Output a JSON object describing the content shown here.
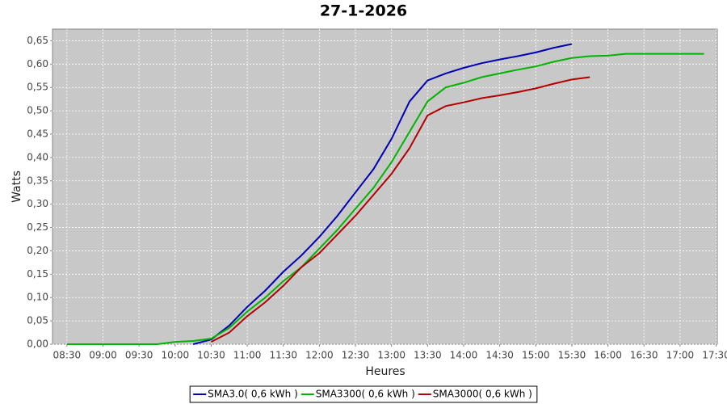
{
  "chart_data": {
    "type": "line",
    "title": "27-1-2026",
    "x_label": "Heures",
    "y_label": "Watts",
    "x": [
      "08:30",
      "08:45",
      "09:00",
      "09:15",
      "09:30",
      "09:45",
      "10:00",
      "10:15",
      "10:30",
      "10:45",
      "11:00",
      "11:15",
      "11:30",
      "11:45",
      "12:00",
      "12:15",
      "12:30",
      "12:45",
      "13:00",
      "13:15",
      "13:30",
      "13:45",
      "14:00",
      "14:15",
      "14:30",
      "14:45",
      "15:00",
      "15:15",
      "15:30",
      "15:45",
      "16:00",
      "16:15",
      "16:30",
      "16:45",
      "17:00",
      "17:15",
      "17:20"
    ],
    "series": [
      {
        "name": "SMA3.0( 0,6 kWh )",
        "color": "#0000b4",
        "values": [
          null,
          null,
          null,
          null,
          null,
          null,
          null,
          0,
          0.01,
          0.04,
          0.08,
          0.115,
          0.155,
          0.19,
          0.23,
          0.275,
          0.325,
          0.375,
          0.44,
          0.52,
          0.565,
          0.58,
          0.592,
          0.602,
          0.61,
          0.617,
          0.625,
          0.635,
          0.643,
          null,
          null,
          null,
          null,
          null,
          null,
          null,
          null
        ]
      },
      {
        "name": "SMA3300( 0,6 kWh )",
        "color": "#00b400",
        "values": [
          0,
          0,
          0,
          0,
          0,
          0,
          0.005,
          0.007,
          0.012,
          0.035,
          0.07,
          0.1,
          0.135,
          0.165,
          0.205,
          0.245,
          0.29,
          0.335,
          0.39,
          0.455,
          0.52,
          0.55,
          0.56,
          0.572,
          0.58,
          0.588,
          0.595,
          0.605,
          0.613,
          0.617,
          0.618,
          0.622,
          0.622,
          0.622,
          0.622,
          0.622,
          0.622
        ]
      },
      {
        "name": "SMA3000( 0,6 kWh )",
        "color": "#b40000",
        "values": [
          null,
          null,
          null,
          null,
          null,
          null,
          null,
          null,
          0.005,
          0.025,
          0.06,
          0.09,
          0.125,
          0.165,
          0.195,
          0.235,
          0.275,
          0.32,
          0.365,
          0.42,
          0.49,
          0.51,
          0.518,
          0.527,
          0.533,
          0.54,
          0.548,
          0.558,
          0.567,
          0.572,
          null,
          null,
          null,
          null,
          null,
          null,
          null
        ]
      }
    ],
    "xlim": [
      "08:18",
      "17:31"
    ],
    "xticks": [
      "08:30",
      "09:00",
      "09:30",
      "10:00",
      "10:30",
      "11:00",
      "11:30",
      "12:00",
      "12:30",
      "13:00",
      "13:30",
      "14:00",
      "14:30",
      "15:00",
      "15:30",
      "16:00",
      "16:30",
      "17:00",
      "17:30"
    ],
    "ylim": [
      0,
      0.675
    ],
    "yticks": [
      {
        "value": 0,
        "label": "0,00"
      },
      {
        "value": 0.05,
        "label": "0,05"
      },
      {
        "value": 0.1,
        "label": "0,10"
      },
      {
        "value": 0.15,
        "label": "0,15"
      },
      {
        "value": 0.2,
        "label": "0,20"
      },
      {
        "value": 0.25,
        "label": "0,25"
      },
      {
        "value": 0.3,
        "label": "0,30"
      },
      {
        "value": 0.35,
        "label": "0,35"
      },
      {
        "value": 0.4,
        "label": "0,40"
      },
      {
        "value": 0.45,
        "label": "0,45"
      },
      {
        "value": 0.5,
        "label": "0,50"
      },
      {
        "value": 0.55,
        "label": "0,55"
      },
      {
        "value": 0.6,
        "label": "0,60"
      },
      {
        "value": 0.65,
        "label": "0,65"
      }
    ],
    "grid": true,
    "legend": "bottom",
    "plot_background": "#c8c8c8"
  }
}
